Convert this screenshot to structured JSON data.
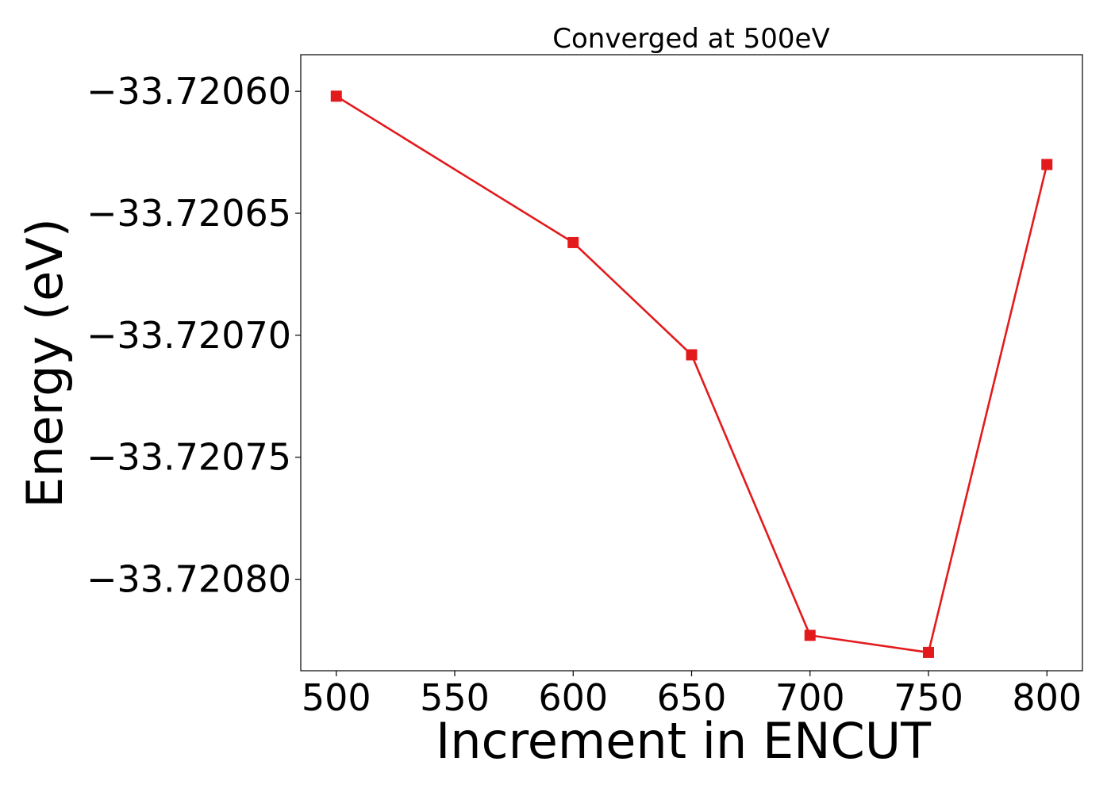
{
  "chart_data": {
    "type": "line",
    "title": "Converged at 500eV",
    "xlabel": "Increment in ENCUT",
    "ylabel": "Energy (eV)",
    "xlim": [
      485,
      815
    ],
    "ylim": [
      -33.7208375,
      -33.720585
    ],
    "xticks": [
      "500",
      "550",
      "600",
      "650",
      "700",
      "750",
      "800"
    ],
    "xtick_values": [
      500,
      550,
      600,
      650,
      700,
      750,
      800
    ],
    "yticks": [
      "−33.72060",
      "−33.72065",
      "−33.72070",
      "−33.72075",
      "−33.72080"
    ],
    "ytick_values": [
      -33.7206,
      -33.72065,
      -33.7207,
      -33.72075,
      -33.7208
    ],
    "grid": false,
    "series": [
      {
        "color": "#e31a1c",
        "marker": "square",
        "x": [
          500,
          600,
          650,
          700,
          750,
          800
        ],
        "y": [
          -33.720602,
          -33.720662,
          -33.720708,
          -33.720823,
          -33.72083,
          -33.72063
        ]
      }
    ]
  }
}
